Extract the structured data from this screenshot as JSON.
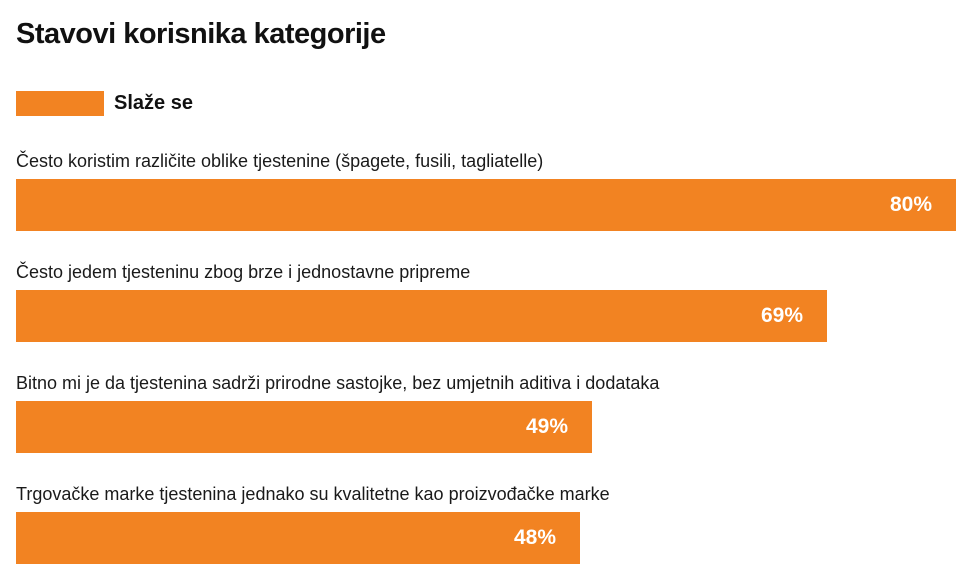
{
  "colors": {
    "accent": "#f28322"
  },
  "chart_data": {
    "type": "bar",
    "orientation": "horizontal",
    "title": "Stavovi korisnika kategorije",
    "categories": [
      "Često koristim različite oblike tjestenine (špagete, fusili, tagliatelle)",
      "Često jedem tjesteninu zbog brze i jednostavne pripreme",
      "Bitno mi je da tjestenina sadrži prirodne sastojke, bez umjetnih aditiva i dodataka",
      "Trgovačke marke tjestenina jednako su kvalitetne kao proizvođačke marke"
    ],
    "series": [
      {
        "name": "Slaže se",
        "values": [
          80,
          69,
          49,
          48
        ],
        "labels": [
          "80%",
          "69%",
          "49%",
          "48%"
        ]
      }
    ],
    "xlim": [
      0,
      80
    ],
    "grid": false,
    "legend": "top-left",
    "xlabel": "",
    "ylabel": ""
  }
}
